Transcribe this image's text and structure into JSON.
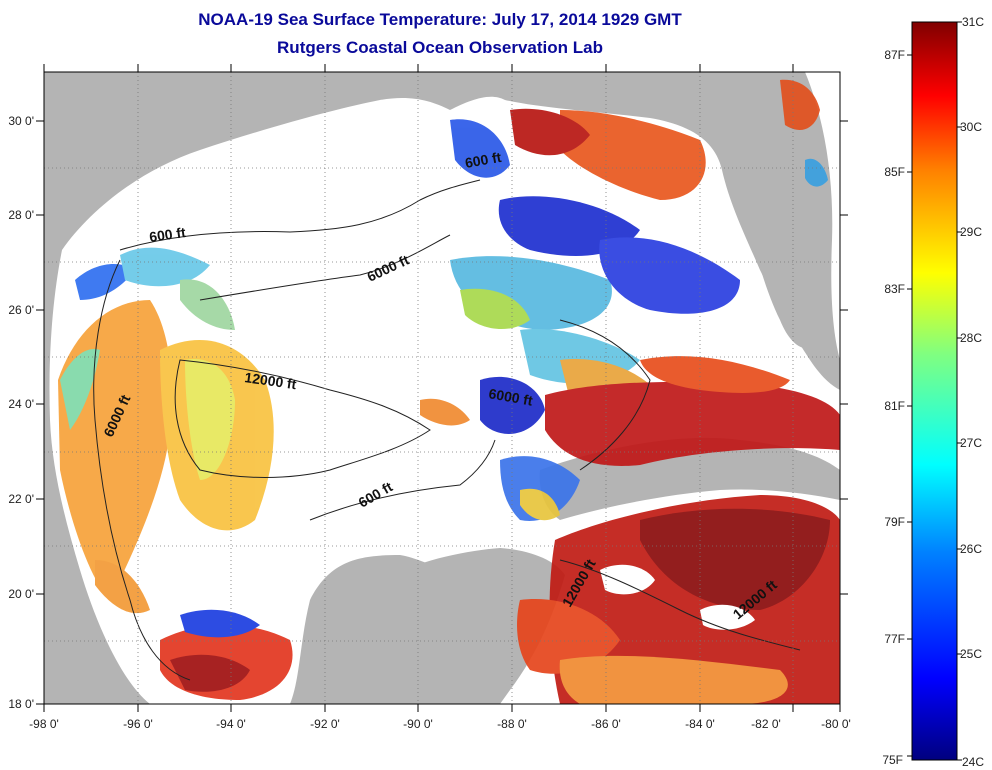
{
  "title": {
    "line1": "NOAA-19 Sea Surface Temperature:  July 17, 2014 1929 GMT",
    "line2": "Rutgers Coastal Ocean Observation Lab"
  },
  "axes": {
    "x_ticks": [
      "-98 0'",
      "-96 0'",
      "-94 0'",
      "-92 0'",
      "-90 0'",
      "-88 0'",
      "-86 0'",
      "-84 0'",
      "-82 0'",
      "-80 0'"
    ],
    "y_ticks": [
      "30 0'",
      "28 0'",
      "26 0'",
      "24 0'",
      "22 0'",
      "20 0'",
      "18 0'"
    ]
  },
  "contour_labels": [
    "600 ft",
    "6000 ft",
    "12000 ft",
    "6000 ft",
    "600 ft",
    "600 ft",
    "6000 ft",
    "12000 ft",
    "12000 ft"
  ],
  "colorbar": {
    "celsius": [
      "31C",
      "30C",
      "29C",
      "28C",
      "27C",
      "26C",
      "25C",
      "24C"
    ],
    "fahrenheit": [
      "87F",
      "85F",
      "83F",
      "81F",
      "79F",
      "77F",
      "75F"
    ],
    "colors": {
      "c0": "#00007f",
      "c1": "#0000ff",
      "c2": "#0080ff",
      "c3": "#00ffff",
      "c4": "#80ff80",
      "c5": "#ffff00",
      "c6": "#ff8000",
      "c7": "#ff0000",
      "c8": "#800000"
    }
  },
  "colors": {
    "land": "#b4b4b4",
    "ocean_nodata": "#ffffff",
    "title": "#0a0a9a"
  }
}
